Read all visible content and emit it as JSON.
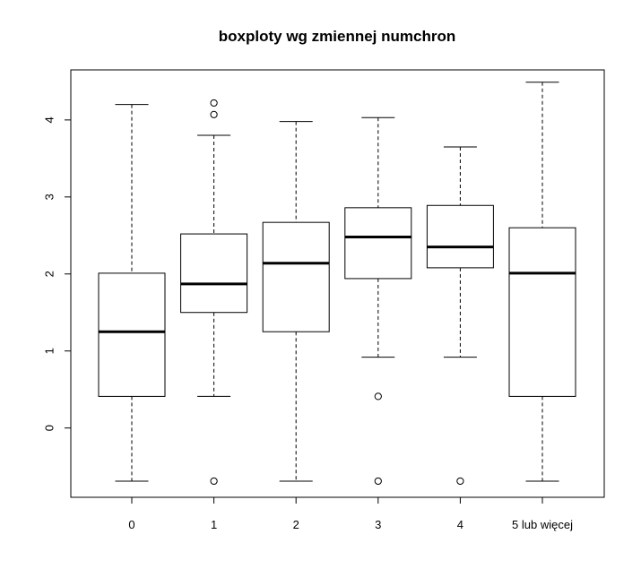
{
  "chart_data": {
    "type": "boxplot",
    "title": "boxploty wg zmiennej numchron",
    "xlabel": "",
    "ylabel": "",
    "categories": [
      "0",
      "1",
      "2",
      "3",
      "4",
      "5 lub więcej"
    ],
    "yticks": [
      0,
      1,
      2,
      3,
      4
    ],
    "ylim": [
      -0.9,
      4.65
    ],
    "grid": false,
    "boxes": [
      {
        "category": "0",
        "whisker_low": -0.69,
        "q1": 0.41,
        "median": 1.25,
        "q3": 2.01,
        "whisker_high": 4.2,
        "outliers": []
      },
      {
        "category": "1",
        "whisker_low": 0.41,
        "q1": 1.5,
        "median": 1.87,
        "q3": 2.52,
        "whisker_high": 3.8,
        "outliers": [
          4.07,
          4.22,
          -0.69
        ]
      },
      {
        "category": "2",
        "whisker_low": -0.69,
        "q1": 1.25,
        "median": 2.14,
        "q3": 2.67,
        "whisker_high": 3.98,
        "outliers": []
      },
      {
        "category": "3",
        "whisker_low": 0.92,
        "q1": 1.94,
        "median": 2.48,
        "q3": 2.86,
        "whisker_high": 4.03,
        "outliers": [
          0.41,
          -0.69
        ]
      },
      {
        "category": "4",
        "whisker_low": 0.92,
        "q1": 2.08,
        "median": 2.35,
        "q3": 2.89,
        "whisker_high": 3.65,
        "outliers": [
          -0.69
        ]
      },
      {
        "category": "5 lub więcej",
        "whisker_low": -0.69,
        "q1": 0.41,
        "median": 2.01,
        "q3": 2.6,
        "whisker_high": 4.49,
        "outliers": []
      }
    ]
  }
}
